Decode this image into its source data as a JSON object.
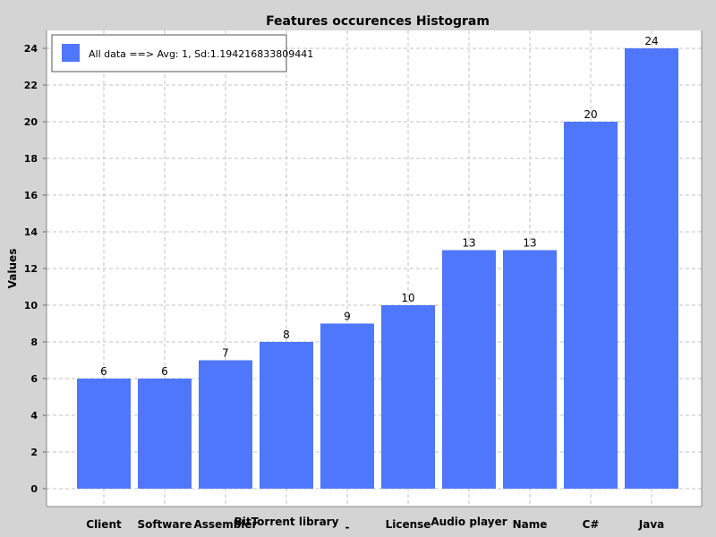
{
  "chart_data": {
    "type": "bar",
    "title": "Features occurences Histogram",
    "xlabel": "",
    "ylabel": "Values",
    "categories": [
      "Client",
      "Software",
      "Assembler",
      "BitTorrent library",
      "-",
      "License",
      "Audio player",
      "Name",
      "C#",
      "Java"
    ],
    "series": [
      {
        "name": "All data ==> Avg: 1, Sd:1.194216833809441",
        "values": [
          6,
          6,
          7,
          8,
          9,
          10,
          13,
          13,
          20,
          24
        ]
      }
    ],
    "data_labels": [
      "6",
      "6",
      "7",
      "8",
      "9",
      "10",
      "13",
      "13",
      "20",
      "24"
    ],
    "ylim": [
      0,
      25
    ],
    "yticks": [
      "0",
      "2",
      "4",
      "6",
      "8",
      "10",
      "12",
      "14",
      "16",
      "18",
      "20",
      "22",
      "24"
    ],
    "grid": true,
    "legend_position": "top-left",
    "colors": {
      "bar": "#4f77fb",
      "background": "#d4d4d4",
      "plot_background": "#ffffff",
      "grid": "#c0c0c0",
      "text": "#000000"
    }
  }
}
